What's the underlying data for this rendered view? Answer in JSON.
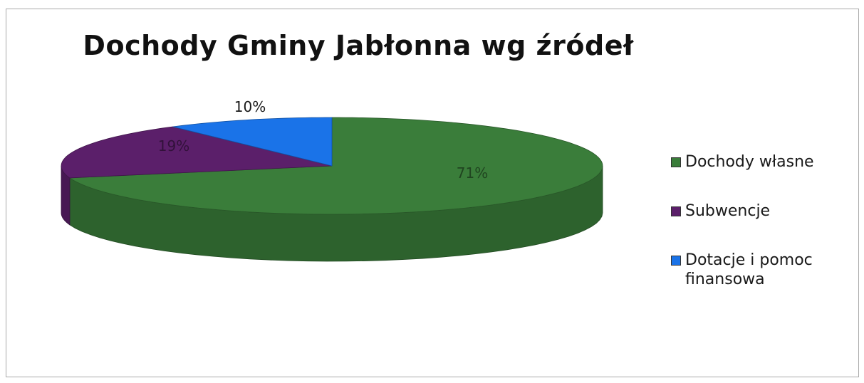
{
  "chart_data": {
    "type": "pie",
    "title": "Dochody Gminy Jabłonna wg źródeł",
    "slices": [
      {
        "name": "Dochody własne",
        "value": 71,
        "label": "71%",
        "color": "#3a7d3a"
      },
      {
        "name": "Subwencje",
        "value": 19,
        "label": "19%",
        "color": "#5b1f6a"
      },
      {
        "name": "Dotacje i pomoc finansowa",
        "value": 10,
        "label": "10%",
        "color": "#1a73e8"
      }
    ],
    "legend_position": "right",
    "three_d": true
  }
}
